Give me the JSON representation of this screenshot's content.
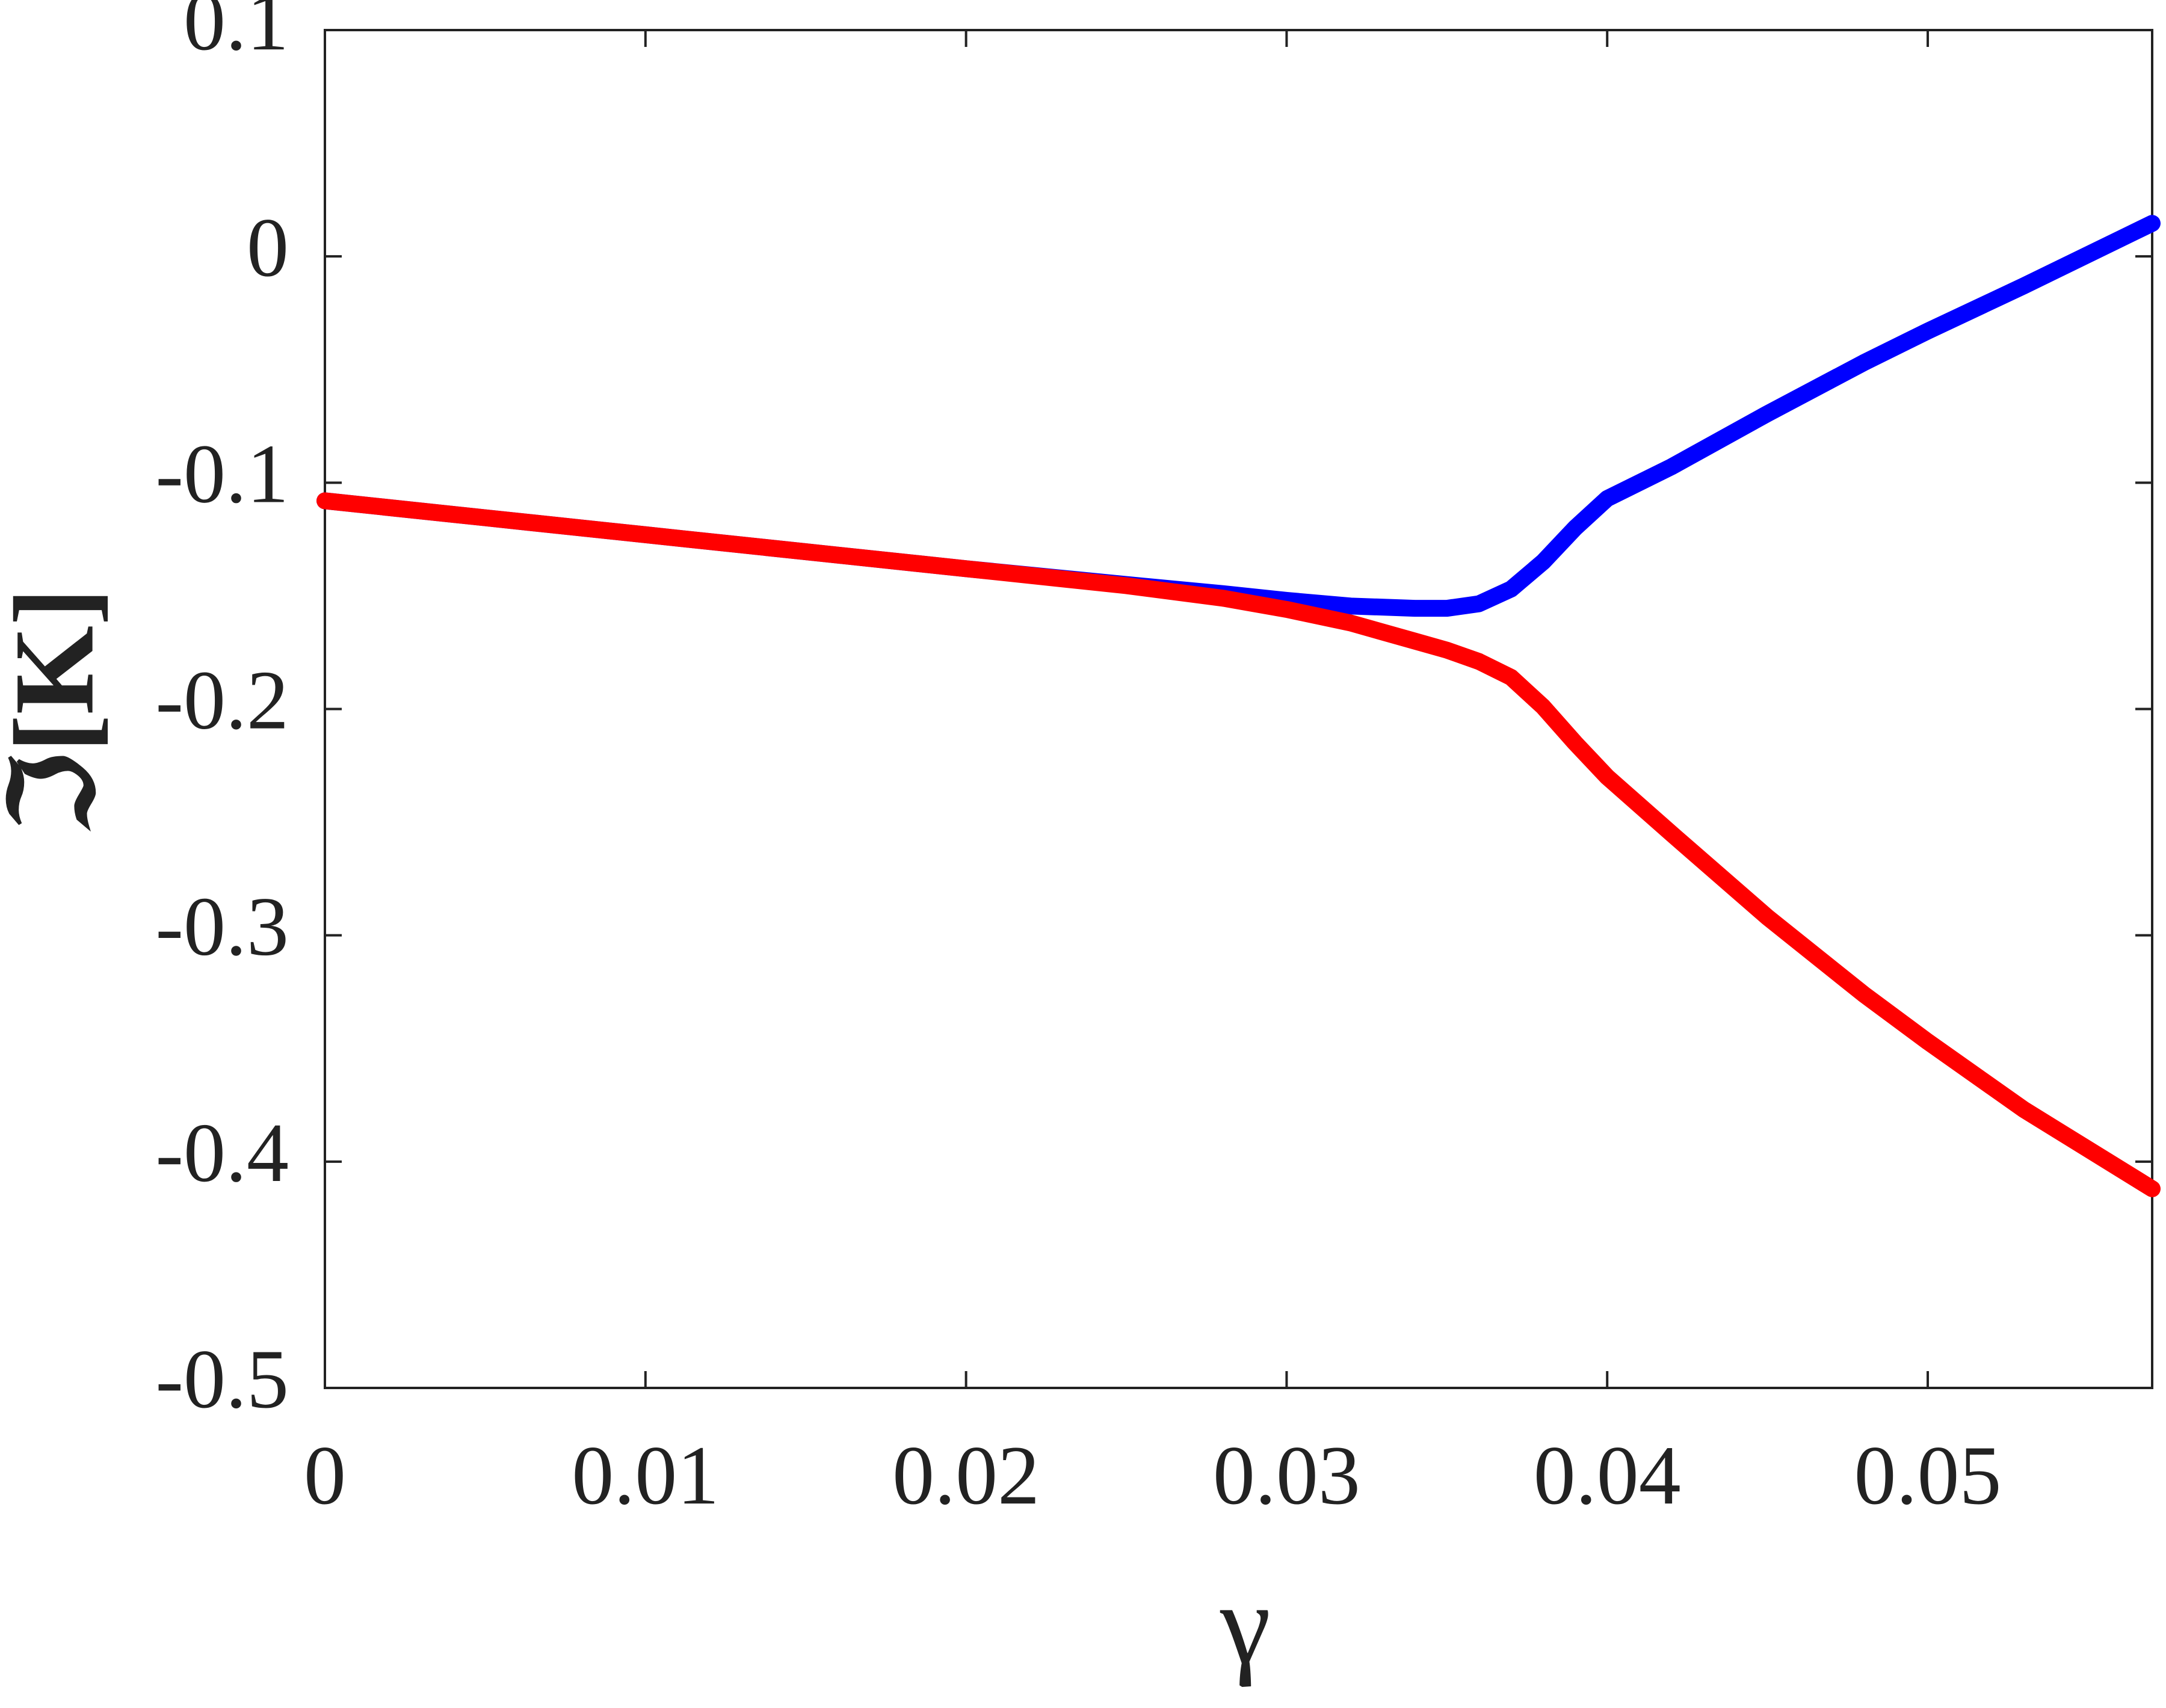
{
  "chart_data": {
    "type": "line",
    "x_label": "γ",
    "y_label": "ℑ[K]",
    "x": [
      0,
      0.005,
      0.01,
      0.015,
      0.02,
      0.025,
      0.028,
      0.03,
      0.032,
      0.034,
      0.035,
      0.036,
      0.037,
      0.038,
      0.039,
      0.04,
      0.042,
      0.045,
      0.048,
      0.05,
      0.053,
      0.057
    ],
    "series": [
      {
        "color": "#0000ff",
        "values": [
          -0.108,
          -0.1155,
          -0.123,
          -0.1305,
          -0.138,
          -0.145,
          -0.149,
          -0.152,
          -0.1545,
          -0.1555,
          -0.1555,
          -0.1535,
          -0.147,
          -0.135,
          -0.12,
          -0.107,
          -0.093,
          -0.0695,
          -0.047,
          -0.033,
          -0.013,
          0.0146
        ]
      },
      {
        "color": "#ff0000",
        "values": [
          -0.108,
          -0.1155,
          -0.123,
          -0.1305,
          -0.138,
          -0.1455,
          -0.151,
          -0.156,
          -0.162,
          -0.17,
          -0.174,
          -0.179,
          -0.186,
          -0.199,
          -0.215,
          -0.23,
          -0.255,
          -0.292,
          -0.326,
          -0.347,
          -0.377,
          -0.412
        ]
      }
    ],
    "xlim": [
      0,
      0.057
    ],
    "xticks": [
      0,
      0.01,
      0.02,
      0.03,
      0.04,
      0.05
    ],
    "ylim": [
      -0.5,
      0.1
    ],
    "yticks": [
      -0.5,
      -0.4,
      -0.3,
      -0.2,
      -0.1,
      0,
      0.1
    ]
  }
}
